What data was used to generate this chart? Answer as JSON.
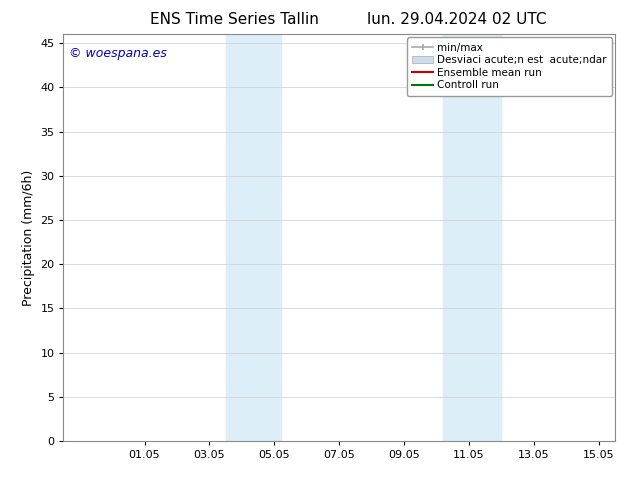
{
  "title_left": "ENS Time Series Tallin",
  "title_right": "lun. 29.04.2024 02 UTC",
  "ylabel": "Precipitation (mm/6h)",
  "ylim": [
    0,
    46
  ],
  "yticks": [
    0,
    5,
    10,
    15,
    20,
    25,
    30,
    35,
    40,
    45
  ],
  "xtick_labels": [
    "01.05",
    "03.05",
    "05.05",
    "07.05",
    "09.05",
    "11.05",
    "13.05",
    "15.05"
  ],
  "background_color": "#ffffff",
  "plot_bg_color": "#ffffff",
  "shaded_color": "#ddeef8",
  "watermark_text": "© woespana.es",
  "watermark_color": "#0000cc",
  "legend_label_min_max": "min/max",
  "legend_label_std": "Desviaci acute;n est  acute;ndar",
  "legend_label_ensemble": "Ensemble mean run",
  "legend_label_control": "Controll run",
  "legend_color_minmax": "#aaaaaa",
  "legend_color_std": "#ccdded",
  "legend_color_ensemble": "#cc0000",
  "legend_color_control": "#007700",
  "title_fontsize": 11,
  "tick_fontsize": 8,
  "label_fontsize": 9,
  "watermark_fontsize": 9,
  "legend_fontsize": 7.5
}
